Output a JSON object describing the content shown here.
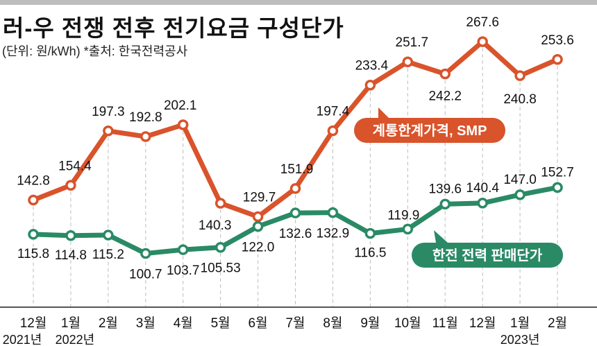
{
  "chart_data": {
    "type": "line",
    "title": "러-우 전쟁 전후 전기요금 구성단가",
    "subtitle": "(단위: 원/kWh)   *출처: 한국전력공사",
    "categories": [
      "12월",
      "1월",
      "2월",
      "3월",
      "4월",
      "5월",
      "6월",
      "7월",
      "8월",
      "9월",
      "10월",
      "11월",
      "12월",
      "1월",
      "2월"
    ],
    "year_labels": [
      {
        "index": 0,
        "label": "2021년"
      },
      {
        "index": 1,
        "label": "2022년"
      },
      {
        "index": 13,
        "label": "2023년"
      }
    ],
    "series": [
      {
        "name": "계통한계가격, SMP",
        "color": "#d9532b",
        "values": [
          142.8,
          154.4,
          197.3,
          192.8,
          202.1,
          140.3,
          129.7,
          151.9,
          197.4,
          233.4,
          251.7,
          242.2,
          267.6,
          240.8,
          253.6
        ],
        "labels": [
          "142.8",
          "154.4",
          "197.3",
          "192.8",
          "202.1",
          "140.3",
          "129.7",
          "151.9",
          "197.4",
          "233.4",
          "251.7",
          "242.2",
          "267.6",
          "240.8",
          "253.6"
        ]
      },
      {
        "name": "한전 전력 판매단가",
        "color": "#2a8a66",
        "values": [
          115.8,
          114.8,
          115.2,
          100.7,
          103.7,
          105.53,
          122.0,
          132.6,
          132.9,
          116.5,
          119.9,
          139.6,
          140.4,
          147.0,
          152.7
        ],
        "labels": [
          "115.8",
          "114.8",
          "115.2",
          "100.7",
          "103.7",
          "105.53",
          "122.0",
          "132.6",
          "132.9",
          "116.5",
          "119.9",
          "139.6",
          "140.4",
          "147.0",
          "152.7"
        ]
      }
    ],
    "grid": "vertical dashed",
    "legend": "inline labels"
  }
}
